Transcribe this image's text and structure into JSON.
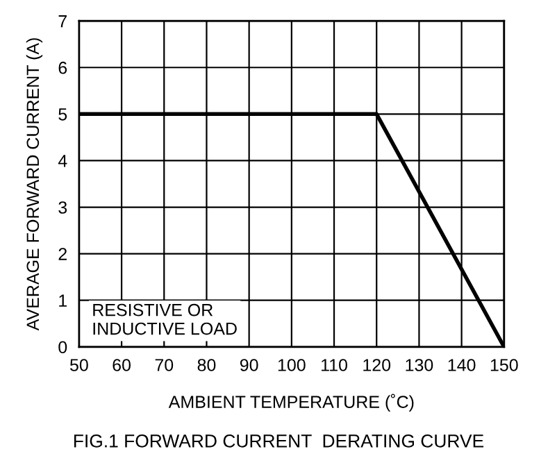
{
  "chart_data": {
    "type": "line",
    "title": "FIG.1 FORWARD CURRENT  DERATING CURVE",
    "xlabel": "AMBIENT TEMPERATURE (˚C)",
    "ylabel": "AVERAGE FORWARD CURRENT (A)",
    "series": [
      {
        "color": "#000000",
        "x": [
          50,
          120,
          150
        ],
        "values": [
          5,
          5,
          0
        ]
      }
    ],
    "xlim": [
      50,
      150
    ],
    "xticks": [
      50,
      60,
      70,
      80,
      90,
      100,
      110,
      120,
      130,
      140,
      150
    ],
    "ylim": [
      0,
      7
    ],
    "yticks": [
      0,
      1,
      2,
      3,
      4,
      5,
      6,
      7
    ],
    "grid": true,
    "annotations": [
      "RESISTIVE OR\nINDUCTIVE LOAD"
    ]
  }
}
